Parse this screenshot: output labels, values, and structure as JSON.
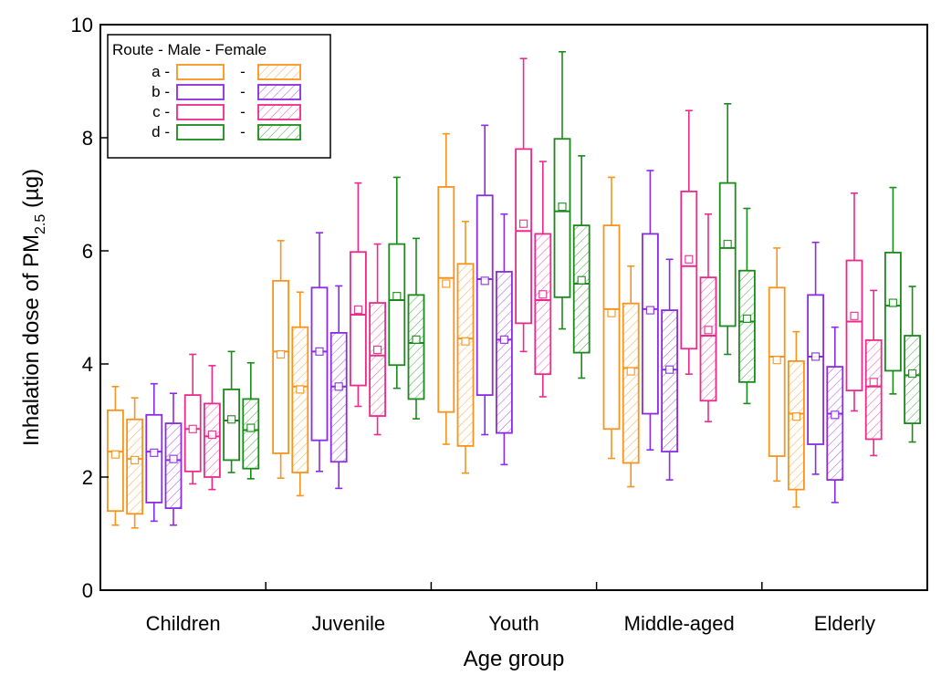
{
  "chart_data": {
    "type": "box",
    "title": "",
    "xlabel": "Age group",
    "ylabel_main": "Inhalation dose of PM",
    "ylabel_sub": "2.5",
    "ylabel_unit": " (µg)",
    "ylim": [
      0,
      10
    ],
    "yticks": [
      0,
      2,
      4,
      6,
      8,
      10
    ],
    "categories": [
      "Children",
      "Juvenile",
      "Youth",
      "Middle-aged",
      "Elderly"
    ],
    "legend": {
      "position": "top-left",
      "header": "Route - Male - Female",
      "entries": [
        {
          "route": "a",
          "sep1": "-",
          "sep2": "-"
        },
        {
          "route": "b",
          "sep1": "-",
          "sep2": "-"
        },
        {
          "route": "c",
          "sep1": "-",
          "sep2": "-"
        },
        {
          "route": "d",
          "sep1": "-",
          "sep2": "-"
        }
      ]
    },
    "route_colors": {
      "a": "#f7941d",
      "b": "#8b2be2",
      "c": "#ec2a8b",
      "d": "#1a8a1a"
    },
    "series_order": [
      "a-Male",
      "a-Female",
      "b-Male",
      "b-Female",
      "c-Male",
      "c-Female",
      "d-Male",
      "d-Female"
    ],
    "boxes": {
      "Children": [
        {
          "route": "a",
          "sex": "Male",
          "min": 1.15,
          "q1": 1.4,
          "median": 2.45,
          "mean": 2.4,
          "q3": 3.18,
          "max": 3.6
        },
        {
          "route": "a",
          "sex": "Female",
          "min": 1.1,
          "q1": 1.35,
          "median": 2.32,
          "mean": 2.3,
          "q3": 3.02,
          "max": 3.4
        },
        {
          "route": "b",
          "sex": "Male",
          "min": 1.22,
          "q1": 1.55,
          "median": 2.45,
          "mean": 2.43,
          "q3": 3.1,
          "max": 3.65
        },
        {
          "route": "b",
          "sex": "Female",
          "min": 1.15,
          "q1": 1.45,
          "median": 2.3,
          "mean": 2.32,
          "q3": 2.95,
          "max": 3.48
        },
        {
          "route": "c",
          "sex": "Male",
          "min": 1.88,
          "q1": 2.1,
          "median": 2.85,
          "mean": 2.85,
          "q3": 3.45,
          "max": 4.17
        },
        {
          "route": "c",
          "sex": "Female",
          "min": 1.78,
          "q1": 2.0,
          "median": 2.72,
          "mean": 2.75,
          "q3": 3.3,
          "max": 3.97
        },
        {
          "route": "d",
          "sex": "Male",
          "min": 2.08,
          "q1": 2.3,
          "median": 3.0,
          "mean": 3.02,
          "q3": 3.55,
          "max": 4.22
        },
        {
          "route": "d",
          "sex": "Female",
          "min": 1.97,
          "q1": 2.15,
          "median": 2.83,
          "mean": 2.87,
          "q3": 3.38,
          "max": 4.02
        }
      ],
      "Juvenile": [
        {
          "route": "a",
          "sex": "Male",
          "min": 1.98,
          "q1": 2.42,
          "median": 4.22,
          "mean": 4.17,
          "q3": 5.47,
          "max": 6.18
        },
        {
          "route": "a",
          "sex": "Female",
          "min": 1.67,
          "q1": 2.08,
          "median": 3.6,
          "mean": 3.55,
          "q3": 4.65,
          "max": 5.27
        },
        {
          "route": "b",
          "sex": "Male",
          "min": 2.1,
          "q1": 2.65,
          "median": 4.22,
          "mean": 4.22,
          "q3": 5.35,
          "max": 6.32
        },
        {
          "route": "b",
          "sex": "Female",
          "min": 1.8,
          "q1": 2.27,
          "median": 3.6,
          "mean": 3.6,
          "q3": 4.55,
          "max": 5.38
        },
        {
          "route": "c",
          "sex": "Male",
          "min": 3.25,
          "q1": 3.62,
          "median": 4.87,
          "mean": 4.96,
          "q3": 5.98,
          "max": 7.2
        },
        {
          "route": "c",
          "sex": "Female",
          "min": 2.75,
          "q1": 3.08,
          "median": 4.15,
          "mean": 4.25,
          "q3": 5.08,
          "max": 6.12
        },
        {
          "route": "d",
          "sex": "Male",
          "min": 3.57,
          "q1": 3.98,
          "median": 5.13,
          "mean": 5.2,
          "q3": 6.12,
          "max": 7.3
        },
        {
          "route": "d",
          "sex": "Female",
          "min": 3.03,
          "q1": 3.38,
          "median": 4.37,
          "mean": 4.43,
          "q3": 5.22,
          "max": 6.22
        }
      ],
      "Youth": [
        {
          "route": "a",
          "sex": "Male",
          "min": 2.58,
          "q1": 3.15,
          "median": 5.52,
          "mean": 5.42,
          "q3": 7.13,
          "max": 8.07
        },
        {
          "route": "a",
          "sex": "Female",
          "min": 2.07,
          "q1": 2.55,
          "median": 4.45,
          "mean": 4.4,
          "q3": 5.77,
          "max": 6.52
        },
        {
          "route": "b",
          "sex": "Male",
          "min": 2.75,
          "q1": 3.45,
          "median": 5.5,
          "mean": 5.47,
          "q3": 6.98,
          "max": 8.22
        },
        {
          "route": "b",
          "sex": "Female",
          "min": 2.22,
          "q1": 2.78,
          "median": 4.43,
          "mean": 4.43,
          "q3": 5.63,
          "max": 6.65
        },
        {
          "route": "c",
          "sex": "Male",
          "min": 4.22,
          "q1": 4.72,
          "median": 6.35,
          "mean": 6.48,
          "q3": 7.8,
          "max": 9.4
        },
        {
          "route": "c",
          "sex": "Female",
          "min": 3.42,
          "q1": 3.82,
          "median": 5.13,
          "mean": 5.23,
          "q3": 6.3,
          "max": 7.58
        },
        {
          "route": "d",
          "sex": "Male",
          "min": 4.62,
          "q1": 5.18,
          "median": 6.7,
          "mean": 6.78,
          "q3": 7.98,
          "max": 9.52
        },
        {
          "route": "d",
          "sex": "Female",
          "min": 3.75,
          "q1": 4.2,
          "median": 5.42,
          "mean": 5.48,
          "q3": 6.45,
          "max": 7.68
        }
      ],
      "Middle-aged": [
        {
          "route": "a",
          "sex": "Male",
          "min": 2.33,
          "q1": 2.85,
          "median": 4.97,
          "mean": 4.9,
          "q3": 6.45,
          "max": 7.3
        },
        {
          "route": "a",
          "sex": "Female",
          "min": 1.83,
          "q1": 2.25,
          "median": 3.93,
          "mean": 3.87,
          "q3": 5.07,
          "max": 5.73
        },
        {
          "route": "b",
          "sex": "Male",
          "min": 2.48,
          "q1": 3.12,
          "median": 4.97,
          "mean": 4.95,
          "q3": 6.3,
          "max": 7.42
        },
        {
          "route": "b",
          "sex": "Female",
          "min": 1.95,
          "q1": 2.45,
          "median": 3.9,
          "mean": 3.9,
          "q3": 4.95,
          "max": 5.85
        },
        {
          "route": "c",
          "sex": "Male",
          "min": 3.82,
          "q1": 4.27,
          "median": 5.73,
          "mean": 5.85,
          "q3": 7.05,
          "max": 8.48
        },
        {
          "route": "c",
          "sex": "Female",
          "min": 2.98,
          "q1": 3.35,
          "median": 4.5,
          "mean": 4.6,
          "q3": 5.53,
          "max": 6.65
        },
        {
          "route": "d",
          "sex": "Male",
          "min": 4.17,
          "q1": 4.67,
          "median": 6.05,
          "mean": 6.12,
          "q3": 7.2,
          "max": 8.6
        },
        {
          "route": "d",
          "sex": "Female",
          "min": 3.3,
          "q1": 3.68,
          "median": 4.75,
          "mean": 4.8,
          "q3": 5.65,
          "max": 6.75
        }
      ],
      "Elderly": [
        {
          "route": "a",
          "sex": "Male",
          "min": 1.93,
          "q1": 2.37,
          "median": 4.13,
          "mean": 4.07,
          "q3": 5.35,
          "max": 6.05
        },
        {
          "route": "a",
          "sex": "Female",
          "min": 1.47,
          "q1": 1.78,
          "median": 3.12,
          "mean": 3.07,
          "q3": 4.05,
          "max": 4.57
        },
        {
          "route": "b",
          "sex": "Male",
          "min": 2.05,
          "q1": 2.58,
          "median": 4.13,
          "mean": 4.13,
          "q3": 5.22,
          "max": 6.15
        },
        {
          "route": "b",
          "sex": "Female",
          "min": 1.55,
          "q1": 1.95,
          "median": 3.12,
          "mean": 3.1,
          "q3": 3.95,
          "max": 4.65
        },
        {
          "route": "c",
          "sex": "Male",
          "min": 3.17,
          "q1": 3.53,
          "median": 4.75,
          "mean": 4.85,
          "q3": 5.83,
          "max": 7.02
        },
        {
          "route": "c",
          "sex": "Female",
          "min": 2.38,
          "q1": 2.67,
          "median": 3.6,
          "mean": 3.68,
          "q3": 4.42,
          "max": 5.3
        },
        {
          "route": "d",
          "sex": "Male",
          "min": 3.47,
          "q1": 3.88,
          "median": 5.03,
          "mean": 5.08,
          "q3": 5.97,
          "max": 7.12
        },
        {
          "route": "d",
          "sex": "Female",
          "min": 2.62,
          "q1": 2.95,
          "median": 3.8,
          "mean": 3.83,
          "q3": 4.5,
          "max": 5.37
        }
      ]
    }
  }
}
